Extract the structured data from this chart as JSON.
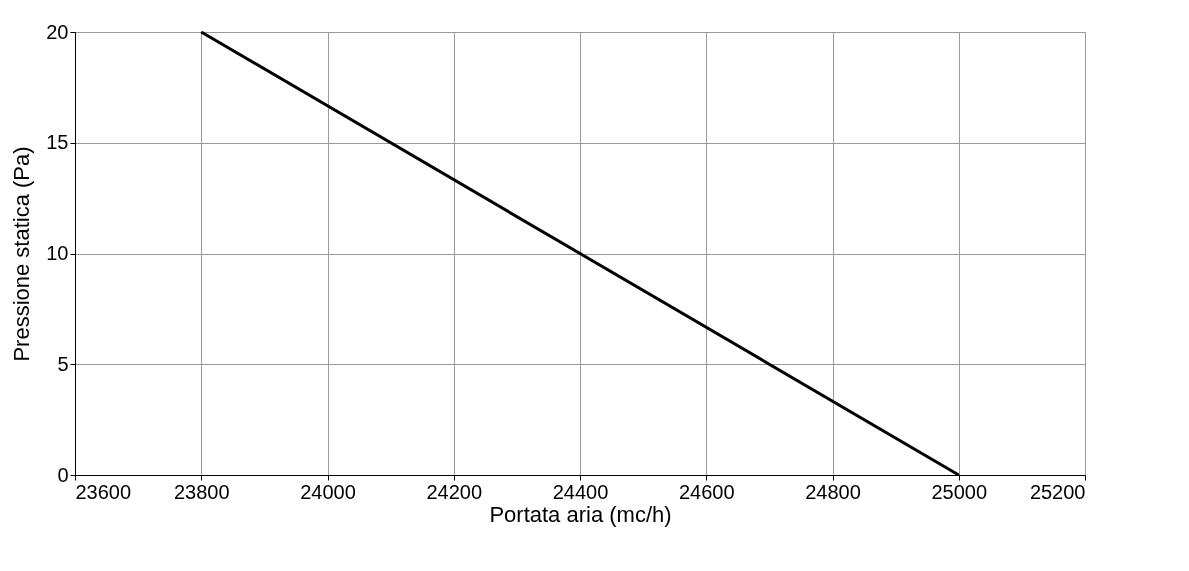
{
  "chart_data": {
    "type": "line",
    "xlabel": "Portata aria (mc/h)",
    "ylabel": "Pressione statica (Pa)",
    "series": [
      {
        "color": "#000000",
        "x": [
          23800,
          25000
        ],
        "values": [
          20,
          0
        ]
      }
    ],
    "xlim": [
      23600,
      25200
    ],
    "xticks": [
      23600,
      23800,
      24000,
      24200,
      24400,
      24600,
      24800,
      25000,
      25200
    ],
    "ylim": [
      0,
      20
    ],
    "yticks": [
      0,
      5,
      10,
      15,
      20
    ],
    "grid": true,
    "marker": "none",
    "line_style": "solid"
  }
}
